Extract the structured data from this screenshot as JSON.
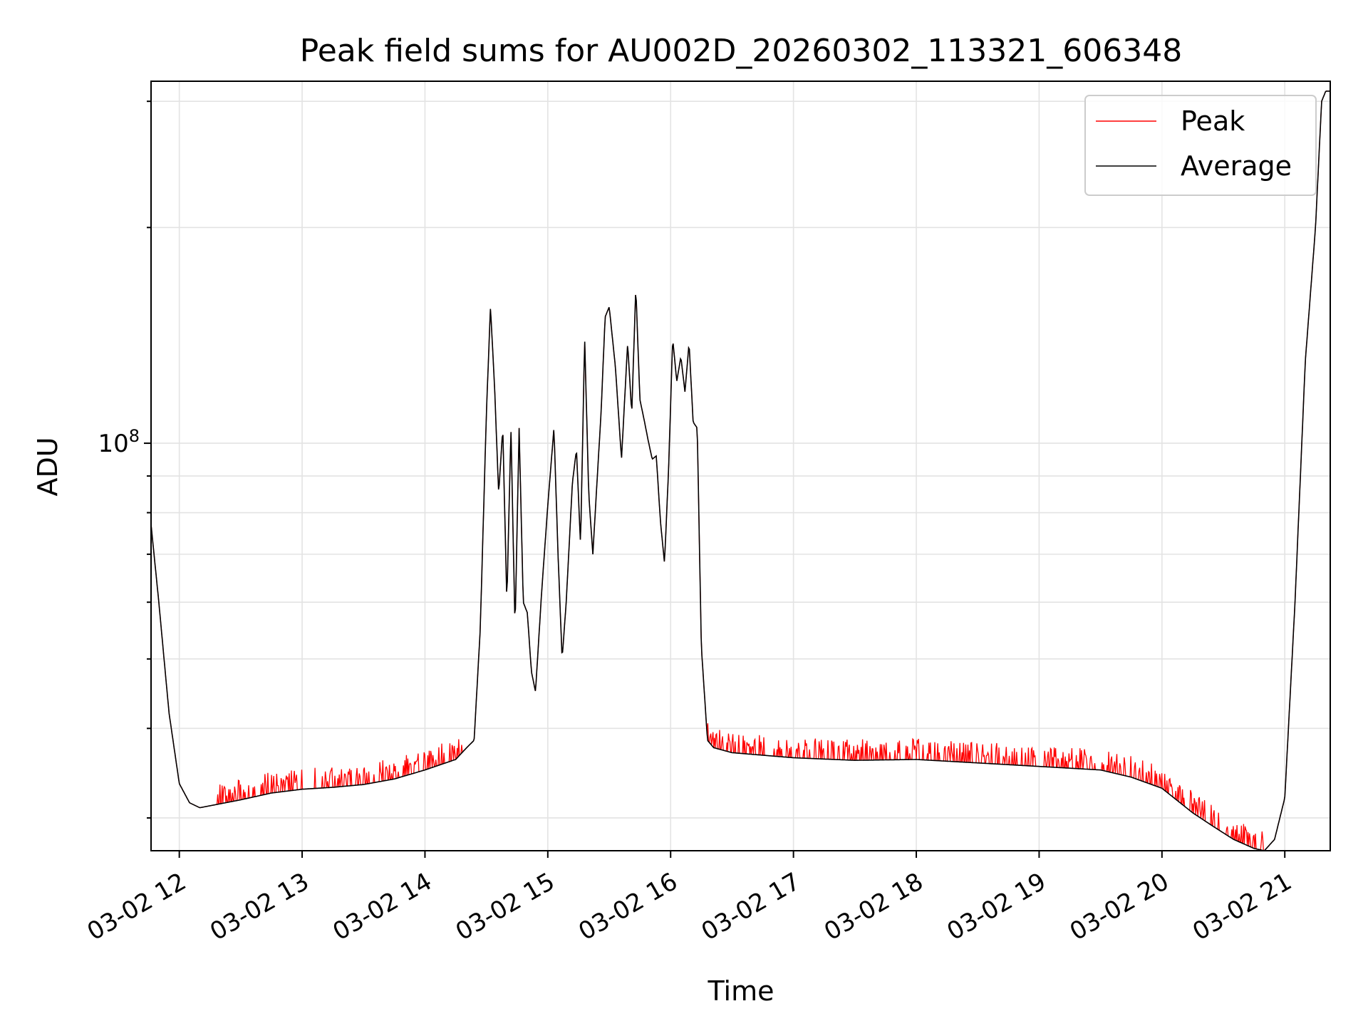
{
  "chart_data": {
    "type": "line",
    "title": "Peak field sums for AU002D_20260302_113321_606348",
    "xlabel": "Time",
    "ylabel": "ADU",
    "y_scale": "log",
    "ylim": [
      27000000,
      320000000
    ],
    "xlim_hours": [
      11.77,
      21.37
    ],
    "x_ticks": [
      {
        "hour": 12,
        "label": "03-02 12"
      },
      {
        "hour": 13,
        "label": "03-02 13"
      },
      {
        "hour": 14,
        "label": "03-02 14"
      },
      {
        "hour": 15,
        "label": "03-02 15"
      },
      {
        "hour": 16,
        "label": "03-02 16"
      },
      {
        "hour": 17,
        "label": "03-02 17"
      },
      {
        "hour": 18,
        "label": "03-02 18"
      },
      {
        "hour": 19,
        "label": "03-02 19"
      },
      {
        "hour": 20,
        "label": "03-02 20"
      },
      {
        "hour": 21,
        "label": "03-02 21"
      }
    ],
    "y_major_ticks": [
      {
        "value": 100000000,
        "base": "10",
        "exp": "8"
      }
    ],
    "y_minor_ticks": [
      30000000,
      40000000,
      50000000,
      60000000,
      70000000,
      80000000,
      90000000,
      200000000,
      300000000
    ],
    "grid": true,
    "legend": {
      "position": "upper right",
      "entries": [
        {
          "name": "Peak",
          "color": "#ff0000"
        },
        {
          "name": "Average",
          "color": "#000000"
        }
      ]
    },
    "series": [
      {
        "name": "Peak",
        "color": "#ff0000",
        "spike_threshold_hours": [
          12.3,
          20.83
        ],
        "spike_factor": 1.05
      },
      {
        "name": "Average",
        "color": "#000000",
        "x": [
          "03-02 11:46",
          "03-02 11:50",
          "03-02 11:55",
          "03-02 12:00",
          "03-02 12:05",
          "03-02 12:10",
          "03-02 12:15",
          "03-02 12:30",
          "03-02 12:45",
          "03-02 13:00",
          "03-02 13:15",
          "03-02 13:30",
          "03-02 13:45",
          "03-02 14:00",
          "03-02 14:15",
          "03-02 14:20",
          "03-02 14:24",
          "03-02 14:27",
          "03-02 14:30",
          "03-02 14:32",
          "03-02 14:34",
          "03-02 14:36",
          "03-02 14:38",
          "03-02 14:40",
          "03-02 14:42",
          "03-02 14:44",
          "03-02 14:46",
          "03-02 14:48",
          "03-02 14:50",
          "03-02 14:52",
          "03-02 14:54",
          "03-02 14:57",
          "03-02 15:00",
          "03-02 15:03",
          "03-02 15:05",
          "03-02 15:07",
          "03-02 15:09",
          "03-02 15:12",
          "03-02 15:14",
          "03-02 15:16",
          "03-02 15:18",
          "03-02 15:20",
          "03-02 15:22",
          "03-02 15:24",
          "03-02 15:26",
          "03-02 15:28",
          "03-02 15:30",
          "03-02 15:33",
          "03-02 15:36",
          "03-02 15:39",
          "03-02 15:41",
          "03-02 15:43",
          "03-02 15:45",
          "03-02 15:47",
          "03-02 15:49",
          "03-02 15:51",
          "03-02 15:53",
          "03-02 15:55",
          "03-02 15:57",
          "03-02 15:59",
          "03-02 16:01",
          "03-02 16:03",
          "03-02 16:05",
          "03-02 16:07",
          "03-02 16:09",
          "03-02 16:11",
          "03-02 16:13",
          "03-02 16:15",
          "03-02 16:18",
          "03-02 16:21",
          "03-02 16:30",
          "03-02 17:00",
          "03-02 17:30",
          "03-02 18:00",
          "03-02 18:30",
          "03-02 19:00",
          "03-02 19:30",
          "03-02 19:45",
          "03-02 20:00",
          "03-02 20:15",
          "03-02 20:25",
          "03-02 20:35",
          "03-02 20:45",
          "03-02 20:50",
          "03-02 20:55",
          "03-02 21:00",
          "03-02 21:05",
          "03-02 21:10",
          "03-02 21:15",
          "03-02 21:18",
          "03-02 21:20",
          "03-02 21:22"
        ],
        "values": [
          78000000,
          60000000,
          42000000,
          33500000,
          31500000,
          31000000,
          31200000,
          31800000,
          32500000,
          32900000,
          33100000,
          33400000,
          34000000,
          35000000,
          36200000,
          37500000,
          38500000,
          55000000,
          110000000,
          155000000,
          120000000,
          85000000,
          105000000,
          60000000,
          105000000,
          55000000,
          105000000,
          60000000,
          58000000,
          48000000,
          45000000,
          62000000,
          82000000,
          105000000,
          70000000,
          50000000,
          60000000,
          88000000,
          98000000,
          72000000,
          140000000,
          85000000,
          70000000,
          88000000,
          110000000,
          150000000,
          155000000,
          128000000,
          95000000,
          138000000,
          110000000,
          165000000,
          115000000,
          108000000,
          101000000,
          95000000,
          96000000,
          78000000,
          68000000,
          92000000,
          140000000,
          122000000,
          132000000,
          118000000,
          138000000,
          107000000,
          105000000,
          52000000,
          38500000,
          37600000,
          37000000,
          36400000,
          36100000,
          36200000,
          35800000,
          35400000,
          35000000,
          34200000,
          33000000,
          30500000,
          29200000,
          28000000,
          27200000,
          27000000,
          28000000,
          32000000,
          60000000,
          130000000,
          200000000,
          300000000,
          310000000,
          310000000
        ]
      }
    ]
  }
}
